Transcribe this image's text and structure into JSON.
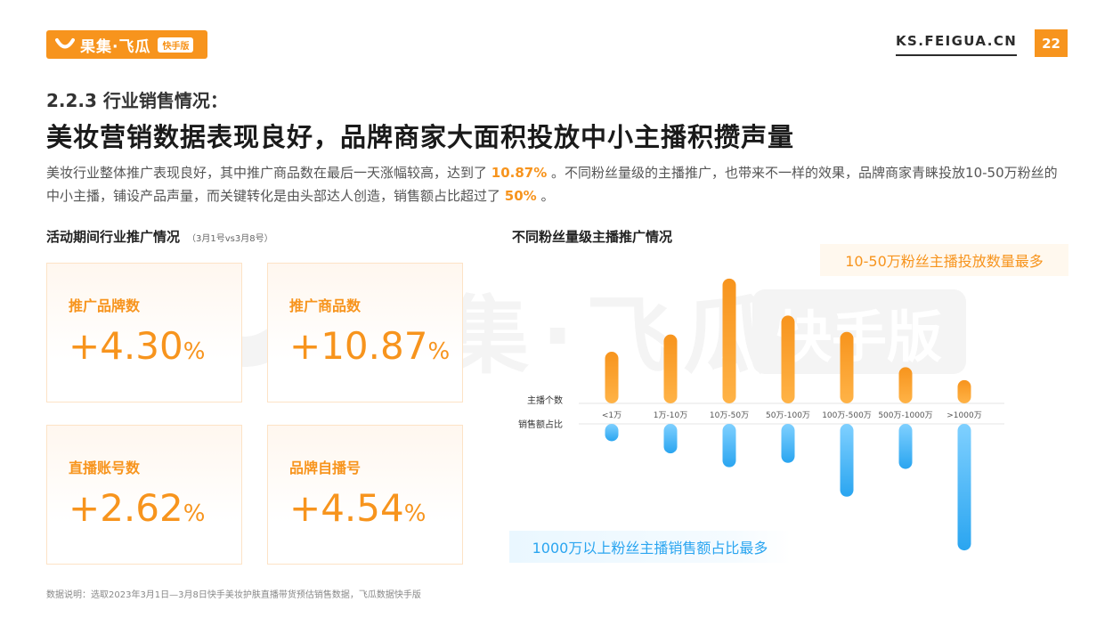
{
  "header": {
    "logo_text": "果集·飞瓜",
    "logo_tag": "快手版",
    "site": "KS.FEIGUA.CN",
    "page_number": "22"
  },
  "section": "2.2.3 行业销售情况：",
  "headline": "美妆营销数据表现良好，品牌商家大面积投放中小主播积攒声量",
  "description": {
    "part1": "美妆行业整体推广表现良好，其中推广商品数在最后一天涨幅较高，达到了 ",
    "hl1": "10.87%",
    "part2": " 。不同粉丝量级的主播推广，也带来不一样的效果，品牌商家青睐投放10-50万粉丝的中小主播，铺设产品声量，而关键转化是由头部达人创造，销售额占比超过了 ",
    "hl2": "50%",
    "part3": " 。"
  },
  "left_panel": {
    "title": "活动期间行业推广情况",
    "note": "（3月1号vs3月8号）",
    "cards": [
      {
        "label": "推广品牌数",
        "value": "+4.30",
        "unit": "%"
      },
      {
        "label": "推广商品数",
        "value": "+10.87",
        "unit": "%"
      },
      {
        "label": "直播账号数",
        "value": "+2.62",
        "unit": "%"
      },
      {
        "label": "品牌自播号",
        "value": "+4.54",
        "unit": "%"
      }
    ]
  },
  "right_panel": {
    "title": "不同粉丝量级主播推广情况",
    "callout_top": "10-50万粉丝主播投放数量最多",
    "callout_bottom": "1000万以上粉丝主播销售额占比最多"
  },
  "chart_data": {
    "type": "bar",
    "categories": [
      "<1万",
      "1万-10万",
      "10万-50万",
      "50万-100万",
      "100万-500万",
      "500万-1000万",
      ">1000万"
    ],
    "series": [
      {
        "name": "主播个数",
        "values": [
          60,
          80,
          145,
          102,
          83,
          42,
          27
        ]
      },
      {
        "name": "销售额占比",
        "values": [
          20,
          34,
          50,
          45,
          84,
          52,
          146
        ]
      }
    ],
    "axis_labels": [
      "主播个数",
      "销售额占比"
    ],
    "colors": {
      "top": "#f7941d",
      "bottom": "#2aa5f0"
    }
  },
  "footnote": "数据说明：选取2023年3月1日—3月8日快手美妆护肤直播带货预估销售数据，飞瓜数据快手版"
}
